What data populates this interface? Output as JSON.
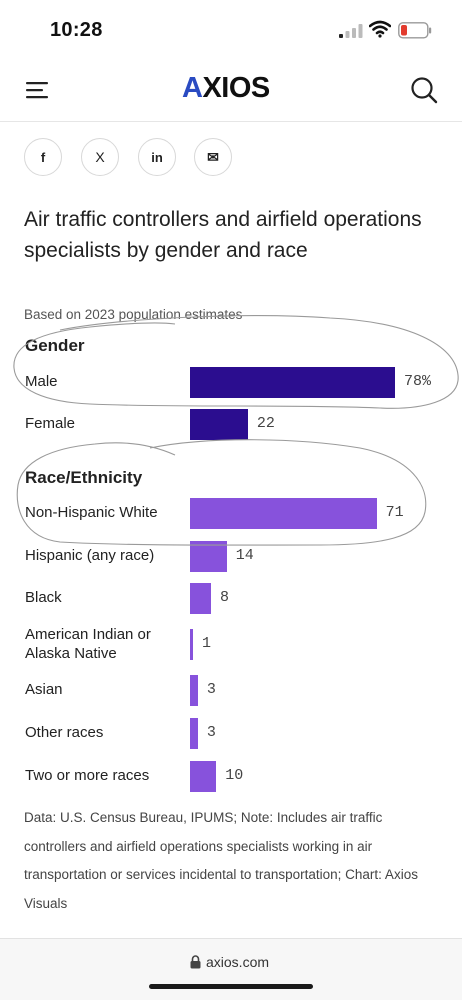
{
  "status_bar": {
    "time": "10:28"
  },
  "nav": {
    "logo_a": "A",
    "logo_rest": "XIOS"
  },
  "share": {
    "facebook": "f",
    "x": "X",
    "linkedin": "in",
    "email": "✉"
  },
  "chart_data": {
    "type": "bar",
    "orientation": "horizontal",
    "title": "Air traffic controllers and airfield operations specialists by gender and race",
    "subtitle": "Based on 2023 population estimates",
    "unit": "%",
    "groups": [
      {
        "name": "Gender",
        "color": "#2b0d8f",
        "categories": [
          "Male",
          "Female"
        ],
        "values": [
          78,
          22
        ],
        "value_labels": [
          "78%",
          "22"
        ]
      },
      {
        "name": "Race/Ethnicity",
        "color": "#8752dc",
        "categories": [
          "Non-Hispanic White",
          "Hispanic (any race)",
          "Black",
          "American Indian or Alaska Native",
          "Asian",
          "Other races",
          "Two or more races"
        ],
        "values": [
          71,
          14,
          8,
          1,
          3,
          3,
          10
        ],
        "value_labels": [
          "71",
          "14",
          "8",
          "1",
          "3",
          "3",
          "10"
        ]
      }
    ],
    "xlim": [
      0,
      100
    ],
    "grid": false
  },
  "note": "Data: U.S. Census Bureau, IPUMS; Note: Includes air traffic controllers and airfield operations specialists working in air transportation or services incidental to transportation; Chart: Axios Visuals",
  "footer": {
    "url": "axios.com"
  },
  "colors": {
    "gender_bar": "#2b0d8f",
    "race_bar": "#8752dc",
    "logo_accent": "#2a4bc2"
  }
}
